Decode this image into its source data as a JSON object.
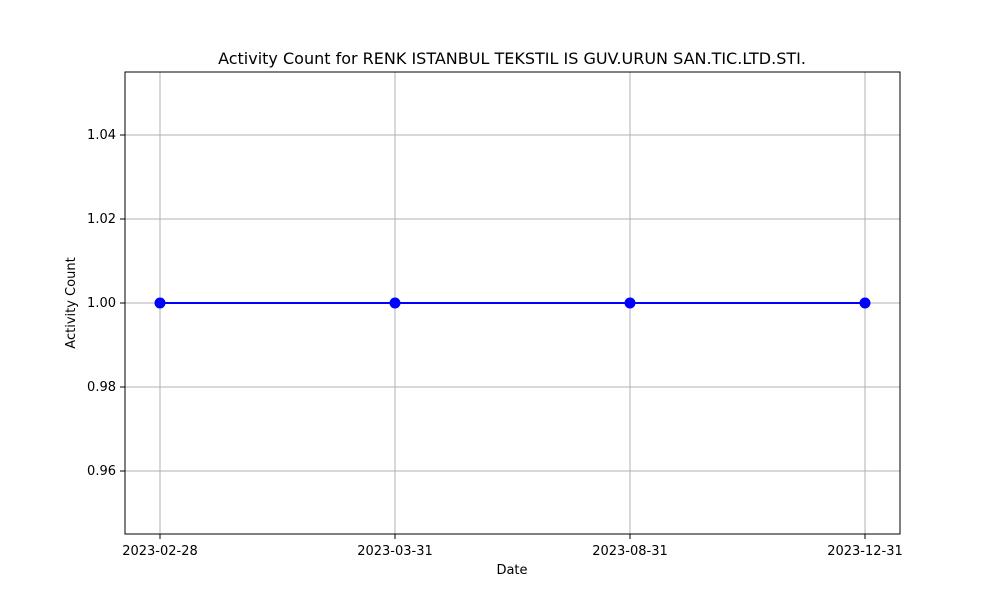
{
  "chart_data": {
    "type": "line",
    "title": "Activity Count for RENK ISTANBUL TEKSTIL IS GUV.URUN SAN.TIC.LTD.STI.",
    "xlabel": "Date",
    "ylabel": "Activity Count",
    "categories": [
      "2023-02-28",
      "2023-03-31",
      "2023-08-31",
      "2023-12-31"
    ],
    "series": [
      {
        "values": [
          1.0,
          1.0,
          1.0,
          1.0
        ],
        "color": "#0000ff",
        "marker": "circle"
      }
    ],
    "ylim": [
      0.945,
      1.055
    ],
    "yticks": [
      "0.96",
      "0.98",
      "1.00",
      "1.02",
      "1.04"
    ],
    "grid": true
  }
}
